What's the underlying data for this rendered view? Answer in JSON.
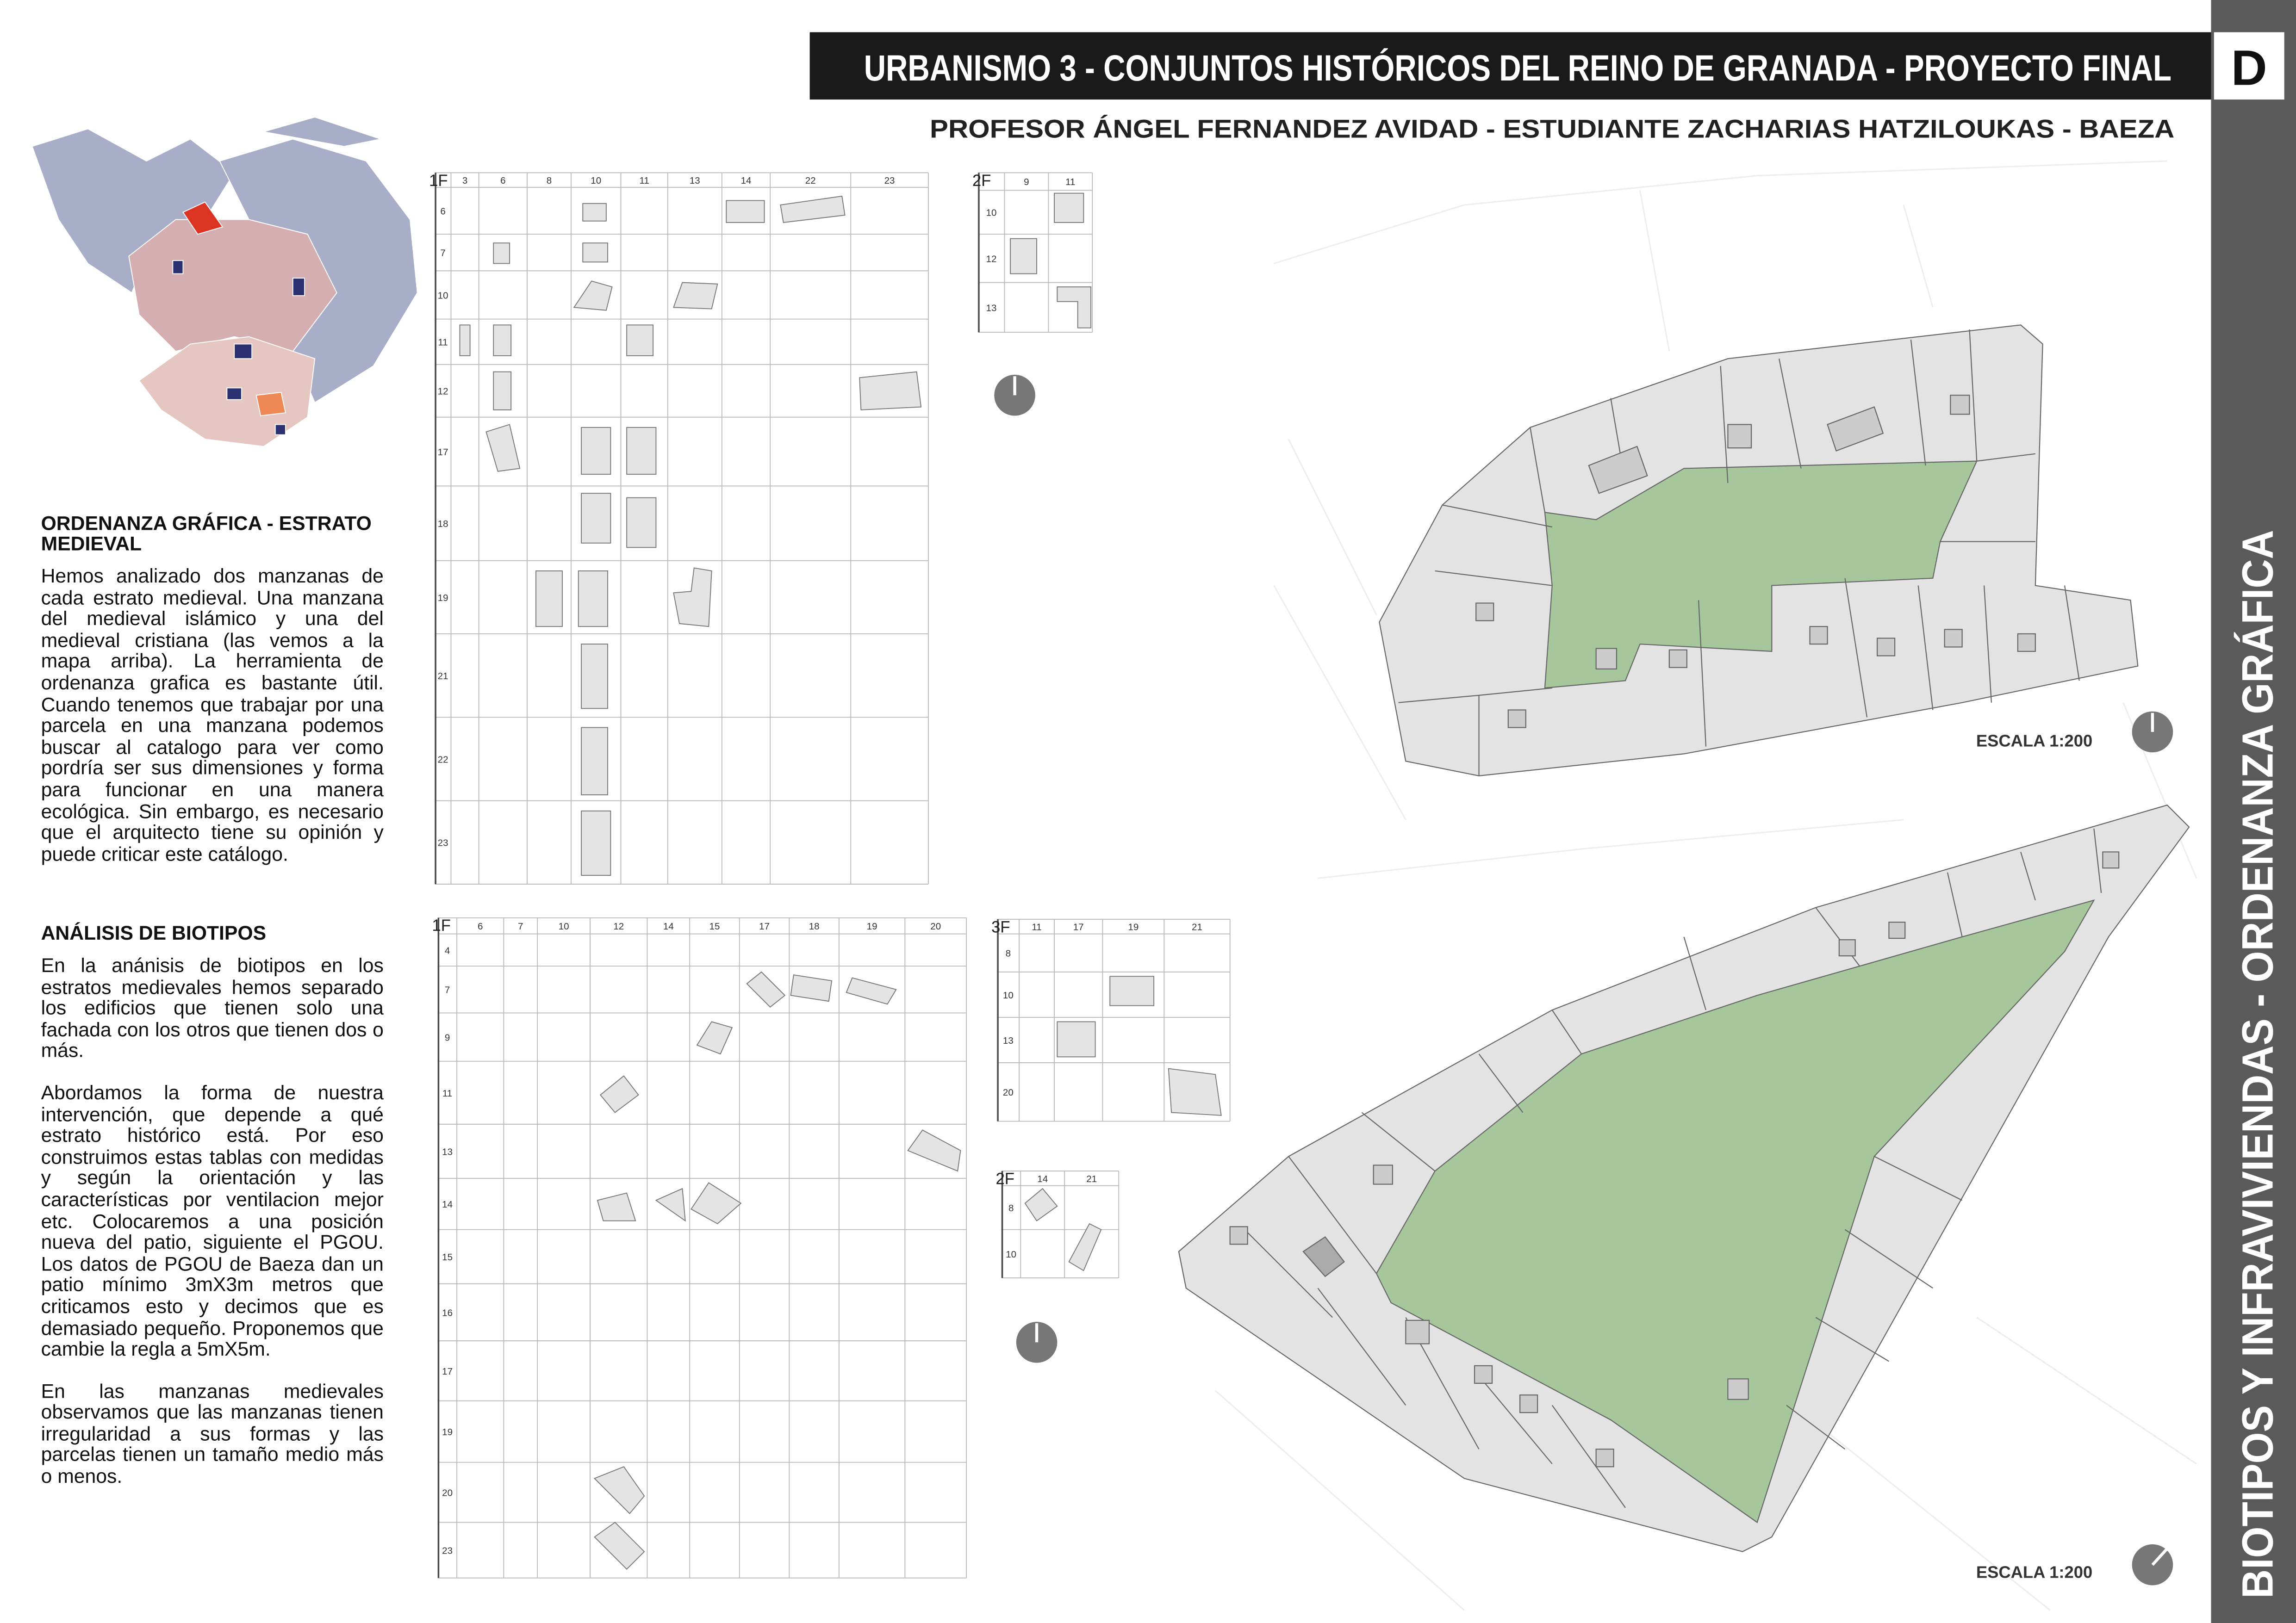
{
  "header": {
    "title": "URBANISMO 3 - CONJUNTOS HISTÓRICOS DEL REINO DE GRANADA - PROYECTO FINAL",
    "subtitle": "PROFESOR ÁNGEL FERNANDEZ AVIDAD - ESTUDIANTE ZACHARIAS HATZILOUKAS - BAEZA",
    "sheet": "D",
    "side_title": "BIOTIPOS Y INFRAVIVIENDAS - ORDENANZA GRÁFICA"
  },
  "sections": [
    {
      "heading": "ORDENANZA GRÁFICA - ESTRATO MEDIEVAL",
      "paragraphs": [
        "Hemos analizado dos manzanas de cada estrato medieval. Una manzana del medieval islámico y una del medieval cristiana (las vemos a la mapa arriba). La herramienta de ordenanza grafica es bastante útil. Cuando tenemos que trabajar por una parcela en una manzana podemos buscar al catalogo para ver como pordría ser sus dimensiones y forma para funcionar en una manera ecológica. Sin embargo, es necesario que el arquitecto tiene su opinión y puede criticar este catálogo."
      ]
    },
    {
      "heading": "ANÁLISIS DE BIOTIPOS",
      "paragraphs": [
        "En la anánisis de biotipos en los estratos medievales hemos separado los edificios que tienen solo una fachada con los otros que tienen dos o más.",
        "Abordamos la forma de nuestra intervención, que depende a qué estrato histórico está. Por eso construimos estas tablas con medidas y según la orientación y las características por ventilacion mejor etc. Colocaremos a una posición nueva del patio, siguiente el PGOU. Los datos de PGOU de Baeza dan un patio mínimo 3mX3m metros que criticamos esto y decimos que es demasiado pequeño. Proponemos que cambie la regla a 5mX5m.",
        "En las manzanas medievales observamos que las manzanas tienen irregularidad a sus formas y las parcelas tienen un tamaño medio más o menos."
      ]
    }
  ],
  "tables": [
    {
      "label": "1F",
      "columns": [
        3,
        6,
        8,
        10,
        11,
        13,
        14,
        22,
        23
      ],
      "rows": [
        6,
        7,
        10,
        11,
        12,
        17,
        18,
        19,
        21,
        22,
        23
      ]
    },
    {
      "label": "2F",
      "columns": [
        9,
        11
      ],
      "rows": [
        10,
        12,
        13
      ]
    },
    {
      "label": "1F",
      "columns": [
        6,
        7,
        10,
        12,
        14,
        15,
        17,
        18,
        19,
        20
      ],
      "rows": [
        4,
        7,
        9,
        11,
        13,
        14,
        15,
        16,
        17,
        19,
        20,
        23
      ]
    },
    {
      "label": "3F",
      "columns": [
        11,
        17,
        19,
        21
      ],
      "rows": [
        8,
        10,
        13,
        20
      ]
    },
    {
      "label": "2F",
      "columns": [
        14,
        21
      ],
      "rows": [
        8,
        10
      ]
    }
  ],
  "plans": [
    {
      "scale": "ESCALA 1:200"
    },
    {
      "scale": "ESCALA 1:200"
    }
  ]
}
